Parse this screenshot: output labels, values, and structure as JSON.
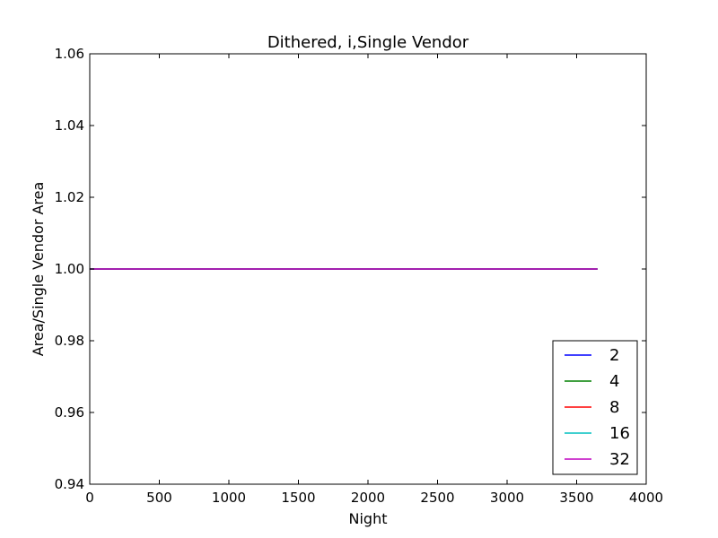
{
  "chart_data": {
    "type": "line",
    "title": "Dithered, i,Single Vendor",
    "xlabel": "Night",
    "ylabel": "Area/Single Vendor Area",
    "xlim": [
      0,
      4000
    ],
    "ylim": [
      0.94,
      1.06
    ],
    "x_ticks": [
      0,
      500,
      1000,
      1500,
      2000,
      2500,
      3000,
      3500,
      4000
    ],
    "x_tick_labels": [
      "0",
      "500",
      "1000",
      "1500",
      "2000",
      "2500",
      "3000",
      "3500",
      "4000"
    ],
    "y_ticks": [
      0.94,
      0.96,
      0.98,
      1.0,
      1.02,
      1.04,
      1.06
    ],
    "y_tick_labels": [
      "0.94",
      "0.96",
      "0.98",
      "1.00",
      "1.02",
      "1.04",
      "1.06"
    ],
    "grid": false,
    "legend_position": "lower-right",
    "series": [
      {
        "name": "2",
        "color": "#0000ff",
        "x": [
          0,
          3650
        ],
        "y": [
          1.0,
          1.0
        ]
      },
      {
        "name": "4",
        "color": "#008000",
        "x": [
          0,
          3650
        ],
        "y": [
          1.0,
          1.0
        ]
      },
      {
        "name": "8",
        "color": "#ff0000",
        "x": [
          0,
          3650
        ],
        "y": [
          1.0,
          1.0
        ]
      },
      {
        "name": "16",
        "color": "#00bfbf",
        "x": [
          0,
          3650
        ],
        "y": [
          1.0,
          1.0
        ]
      },
      {
        "name": "32",
        "color": "#bf00bf",
        "x": [
          0,
          3650
        ],
        "y": [
          1.0,
          1.0
        ]
      }
    ]
  }
}
